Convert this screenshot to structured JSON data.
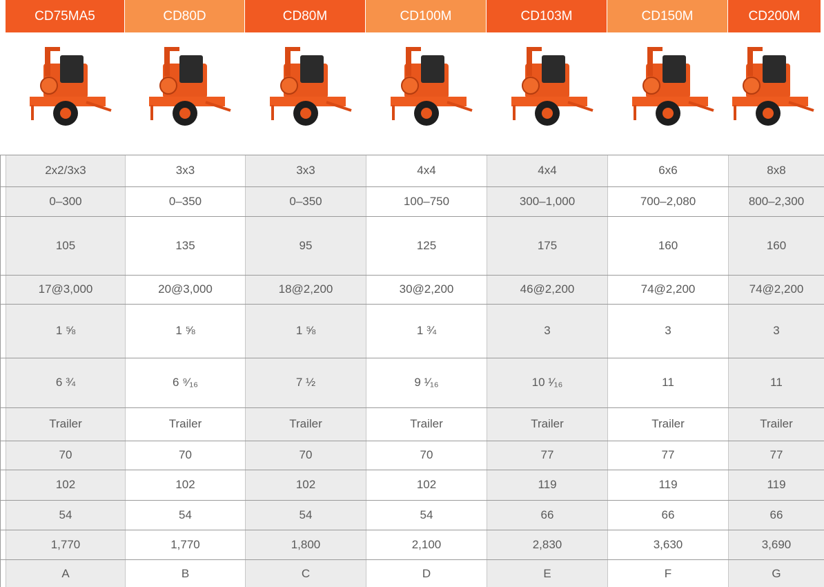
{
  "header": {
    "models": [
      "CD75MA5",
      "CD80D",
      "CD80M",
      "CD100M",
      "CD103M",
      "CD150M",
      "CD200M"
    ]
  },
  "table": {
    "rows": [
      [
        "2x2/3x3",
        "3x3",
        "3x3",
        "4x4",
        "4x4",
        "6x6",
        "8x8"
      ],
      [
        "0–300",
        "0–350",
        "0–350",
        "100–750",
        "300–1,000",
        "700–2,080",
        "800–2,300"
      ],
      [
        "105",
        "135",
        "95",
        "125",
        "175",
        "160",
        "160"
      ],
      [
        "17@3,000",
        "20@3,000",
        "18@2,200",
        "30@2,200",
        "46@2,200",
        "74@2,200",
        "74@2,200"
      ],
      [
        "1 ⅝",
        "1 ⅝",
        "1 ⅝",
        "1 ¾",
        "3",
        "3",
        "3"
      ],
      [
        "6 ¾",
        "6 ⁹⁄₁₆",
        "7 ½",
        "9 ¹⁄₁₆",
        "10 ¹⁄₁₆",
        "11",
        "11"
      ],
      [
        "Trailer",
        "Trailer",
        "Trailer",
        "Trailer",
        "Trailer",
        "Trailer",
        "Trailer"
      ],
      [
        "70",
        "70",
        "70",
        "70",
        "77",
        "77",
        "77"
      ],
      [
        "102",
        "102",
        "102",
        "102",
        "119",
        "119",
        "119"
      ],
      [
        "54",
        "54",
        "54",
        "54",
        "66",
        "66",
        "66"
      ],
      [
        "1,770",
        "1,770",
        "1,800",
        "2,100",
        "2,830",
        "3,630",
        "3,690"
      ],
      [
        "A",
        "B",
        "C",
        "D",
        "E",
        "F",
        "G"
      ]
    ]
  }
}
